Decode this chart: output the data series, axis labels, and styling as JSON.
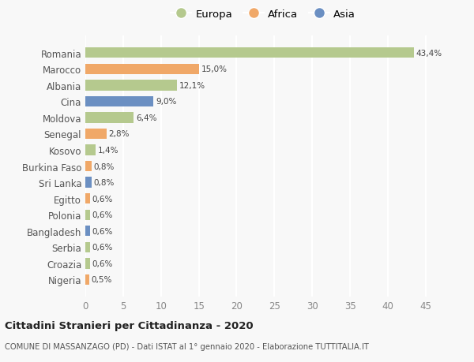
{
  "countries": [
    "Romania",
    "Marocco",
    "Albania",
    "Cina",
    "Moldova",
    "Senegal",
    "Kosovo",
    "Burkina Faso",
    "Sri Lanka",
    "Egitto",
    "Polonia",
    "Bangladesh",
    "Serbia",
    "Croazia",
    "Nigeria"
  ],
  "values": [
    43.4,
    15.0,
    12.1,
    9.0,
    6.4,
    2.8,
    1.4,
    0.8,
    0.8,
    0.6,
    0.6,
    0.6,
    0.6,
    0.6,
    0.5
  ],
  "labels": [
    "43,4%",
    "15,0%",
    "12,1%",
    "9,0%",
    "6,4%",
    "2,8%",
    "1,4%",
    "0,8%",
    "0,8%",
    "0,6%",
    "0,6%",
    "0,6%",
    "0,6%",
    "0,6%",
    "0,5%"
  ],
  "continents": [
    "Europa",
    "Africa",
    "Europa",
    "Asia",
    "Europa",
    "Africa",
    "Europa",
    "Africa",
    "Asia",
    "Africa",
    "Europa",
    "Asia",
    "Europa",
    "Europa",
    "Africa"
  ],
  "colors": {
    "Europa": "#b5c98e",
    "Africa": "#f0a868",
    "Asia": "#6b8fc2"
  },
  "xlim": [
    0,
    47
  ],
  "xticks": [
    0,
    5,
    10,
    15,
    20,
    25,
    30,
    35,
    40,
    45
  ],
  "title": "Cittadini Stranieri per Cittadinanza - 2020",
  "subtitle": "COMUNE DI MASSANZAGO (PD) - Dati ISTAT al 1° gennaio 2020 - Elaborazione TUTTITALIA.IT",
  "background_color": "#f8f8f8",
  "grid_color": "#ffffff",
  "bar_height": 0.65
}
